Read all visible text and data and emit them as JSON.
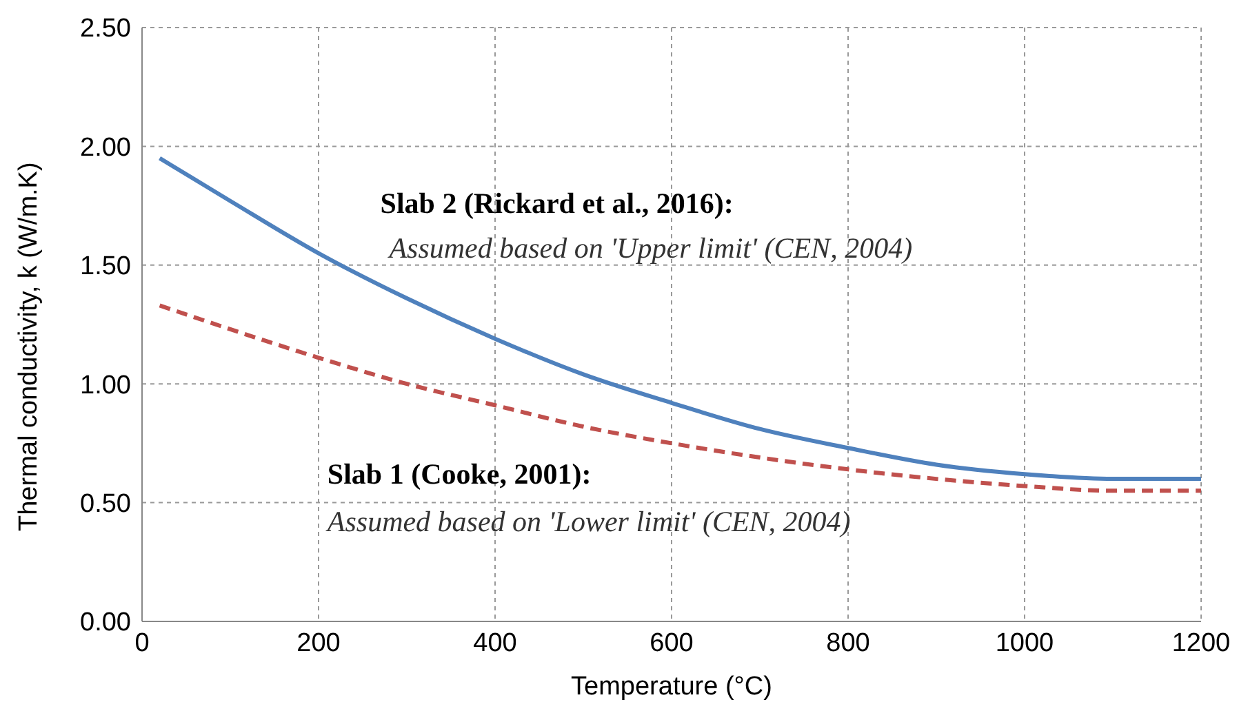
{
  "chart_data": {
    "type": "line",
    "xlabel": "Temperature (°C)",
    "ylabel": "Thermal conductivity, k (W/m.K)",
    "x": [
      20,
      100,
      200,
      300,
      400,
      500,
      600,
      700,
      800,
      900,
      1000,
      1100,
      1200
    ],
    "series": [
      {
        "color": "#4f81bd",
        "line_style": "solid",
        "values": [
          1.95,
          1.77,
          1.55,
          1.36,
          1.19,
          1.04,
          0.92,
          0.81,
          0.73,
          0.66,
          0.62,
          0.6,
          0.6
        ]
      },
      {
        "color": "#c0504d",
        "line_style": "dashed",
        "values": [
          1.33,
          1.23,
          1.11,
          1.0,
          0.91,
          0.82,
          0.75,
          0.69,
          0.64,
          0.6,
          0.57,
          0.55,
          0.55
        ]
      }
    ],
    "xlim": [
      0,
      1200
    ],
    "xticks": [
      0,
      200,
      400,
      600,
      800,
      1000,
      1200
    ],
    "ylim": [
      0,
      2.5
    ],
    "yticks": [
      {
        "value": 0,
        "label": "0.00"
      },
      {
        "value": 0.5,
        "label": "0.50"
      },
      {
        "value": 1,
        "label": "1.00"
      },
      {
        "value": 1.5,
        "label": "1.50"
      },
      {
        "value": 2,
        "label": "2.00"
      },
      {
        "value": 2.5,
        "label": "2.50"
      }
    ],
    "annotations": [
      "Slab 2 (Rickard et al., 2016):",
      "Assumed based on  'Upper limit' (CEN, 2004)",
      "Slab 1 (Cooke, 2001):",
      "Assumed based on  'Lower limit' (CEN, 2004)"
    ],
    "grid": true,
    "legend": false,
    "marker": "none"
  }
}
